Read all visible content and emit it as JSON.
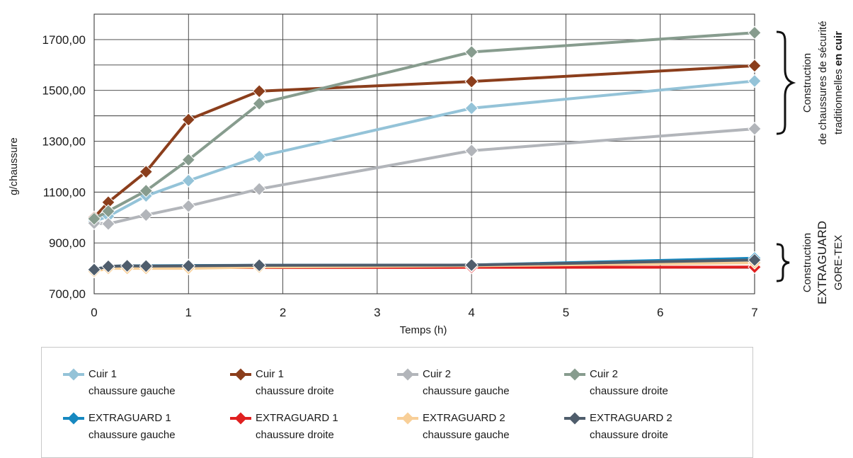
{
  "chart_data": {
    "type": "line",
    "xlabel": "Temps (h)",
    "ylabel": "g/chaussure",
    "xlim": [
      0,
      7
    ],
    "ylim": [
      700,
      1800
    ],
    "x_ticks": [
      "0",
      "1",
      "2",
      "3",
      "4",
      "5",
      "6",
      "7"
    ],
    "y_ticks": [
      "700,00",
      "900,00",
      "1100,00",
      "1300,00",
      "1500,00",
      "1700,00"
    ],
    "grid": true,
    "legend_position": "bottom",
    "series": [
      {
        "id": "cuir1g",
        "line1": "Cuir 1",
        "line2": "chaussure gauche",
        "color": "#94c3d8",
        "points": [
          [
            0,
            985
          ],
          [
            0.15,
            1005
          ],
          [
            0.55,
            1085
          ],
          [
            1,
            1145
          ],
          [
            1.75,
            1240
          ],
          [
            4,
            1430
          ],
          [
            7,
            1537
          ]
        ]
      },
      {
        "id": "cuir1d",
        "line1": "Cuir 1",
        "line2": "chaussure droite",
        "color": "#8b3e1c",
        "points": [
          [
            0,
            1000
          ],
          [
            0.15,
            1060
          ],
          [
            0.55,
            1180
          ],
          [
            1,
            1385
          ],
          [
            1.75,
            1497
          ],
          [
            4,
            1535
          ],
          [
            7,
            1597
          ]
        ]
      },
      {
        "id": "cuir2g",
        "line1": "Cuir 2",
        "line2": "chaussure gauche",
        "color": "#b2b5ba",
        "points": [
          [
            0,
            978
          ],
          [
            0.15,
            975
          ],
          [
            0.55,
            1010
          ],
          [
            1,
            1045
          ],
          [
            1.75,
            1112
          ],
          [
            4,
            1263
          ],
          [
            7,
            1349
          ]
        ]
      },
      {
        "id": "cuir2d",
        "line1": "Cuir 2",
        "line2": "chaussure droite",
        "color": "#879c8e",
        "points": [
          [
            0,
            995
          ],
          [
            0.15,
            1025
          ],
          [
            0.55,
            1105
          ],
          [
            1,
            1227
          ],
          [
            1.75,
            1448
          ],
          [
            4,
            1651
          ],
          [
            7,
            1727
          ]
        ]
      },
      {
        "id": "eg1g",
        "line1": "EXTRAGUARD 1",
        "line2": "chaussure gauche",
        "color": "#1688c0",
        "points": [
          [
            0,
            795
          ],
          [
            0.15,
            808
          ],
          [
            0.35,
            810
          ],
          [
            0.55,
            810
          ],
          [
            1,
            811
          ],
          [
            1.75,
            812
          ],
          [
            4,
            813
          ],
          [
            7,
            840
          ]
        ]
      },
      {
        "id": "eg1d",
        "line1": "EXTRAGUARD 1",
        "line2": "chaussure droite",
        "color": "#e02020",
        "points": [
          [
            0,
            795
          ],
          [
            0.15,
            802
          ],
          [
            0.35,
            803
          ],
          [
            0.55,
            803
          ],
          [
            1,
            803
          ],
          [
            1.75,
            803
          ],
          [
            4,
            804
          ],
          [
            7,
            805
          ]
        ]
      },
      {
        "id": "eg2g",
        "line1": "EXTRAGUARD 2",
        "line2": "chaussure gauche",
        "color": "#f8cf98",
        "points": [
          [
            0,
            788
          ],
          [
            0.15,
            800
          ],
          [
            0.35,
            800
          ],
          [
            0.55,
            800
          ],
          [
            1,
            800
          ],
          [
            1.75,
            805
          ],
          [
            4,
            810
          ],
          [
            7,
            822
          ]
        ]
      },
      {
        "id": "eg2d",
        "line1": "EXTRAGUARD 2",
        "line2": "chaussure droite",
        "color": "#4f5d6c",
        "points": [
          [
            0,
            795
          ],
          [
            0.15,
            808
          ],
          [
            0.35,
            810
          ],
          [
            0.55,
            809
          ],
          [
            1,
            810
          ],
          [
            1.75,
            812
          ],
          [
            4,
            813
          ],
          [
            7,
            833
          ]
        ]
      }
    ],
    "annotations": {
      "leather": {
        "line1": "Construction",
        "line2": "de chaussures de sécurité",
        "line3_normal": "traditionnelles ",
        "line3_bold": "en cuir"
      },
      "extraguard": {
        "line1": "Construction",
        "line2": "EXTRAGUARD",
        "line3": "GORE-TEX"
      }
    }
  }
}
